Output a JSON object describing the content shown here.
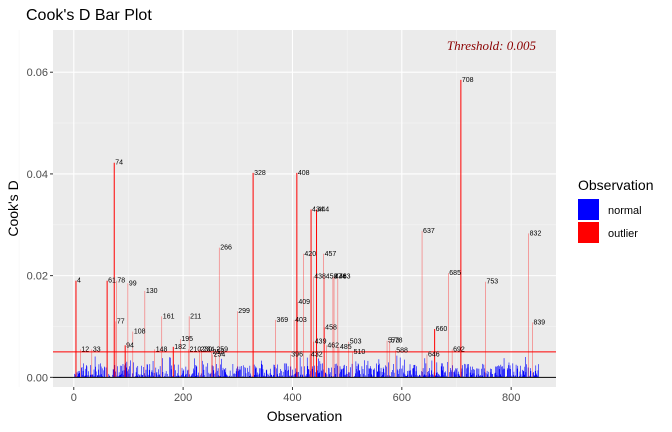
{
  "chart_data": {
    "type": "bar",
    "title": "Cook's D Bar Plot",
    "xlabel": "Observation",
    "ylabel": "Cook's D",
    "xlim": [
      -38,
      882
    ],
    "ylim": [
      -0.0019,
      0.0683
    ],
    "x_ticks": [
      0,
      200,
      400,
      600,
      800
    ],
    "x_tick_labels": [
      "0",
      "200",
      "400",
      "600",
      "800"
    ],
    "y_ticks": [
      0,
      0.02,
      0.04,
      0.06
    ],
    "y_tick_labels": [
      "0.00",
      "0.02",
      "0.04",
      "0.06"
    ],
    "threshold": 0.005,
    "threshold_label": "Threshold: 0.005",
    "grid": true,
    "legend": {
      "title": "Observation",
      "position": "right",
      "items": [
        {
          "name": "normal",
          "color": "#0000ff"
        },
        {
          "name": "outlier",
          "color": "#ff0000"
        }
      ]
    },
    "outliers": [
      {
        "x": 4,
        "y": 0.019,
        "label": "4"
      },
      {
        "x": 12,
        "y": 0.0055,
        "label": "12"
      },
      {
        "x": 33,
        "y": 0.0055,
        "label": "33"
      },
      {
        "x": 61,
        "y": 0.019,
        "label": "61"
      },
      {
        "x": 74,
        "y": 0.0422,
        "label": "74"
      },
      {
        "x": 77,
        "y": 0.011,
        "label": "77"
      },
      {
        "x": 78,
        "y": 0.019,
        "label": "78"
      },
      {
        "x": 94,
        "y": 0.0063,
        "label": "94"
      },
      {
        "x": 99,
        "y": 0.0185,
        "label": "99"
      },
      {
        "x": 108,
        "y": 0.009,
        "label": "108"
      },
      {
        "x": 130,
        "y": 0.017,
        "label": "130"
      },
      {
        "x": 148,
        "y": 0.0055,
        "label": "148"
      },
      {
        "x": 161,
        "y": 0.012,
        "label": "161"
      },
      {
        "x": 182,
        "y": 0.006,
        "label": "182"
      },
      {
        "x": 195,
        "y": 0.0075,
        "label": "195"
      },
      {
        "x": 210,
        "y": 0.0055,
        "label": "210"
      },
      {
        "x": 211,
        "y": 0.012,
        "label": "211"
      },
      {
        "x": 230,
        "y": 0.0055,
        "label": "230"
      },
      {
        "x": 234,
        "y": 0.0055,
        "label": "234"
      },
      {
        "x": 252,
        "y": 0.005,
        "label": "252"
      },
      {
        "x": 254,
        "y": 0.0045,
        "label": "254"
      },
      {
        "x": 259,
        "y": 0.0055,
        "label": "259"
      },
      {
        "x": 266,
        "y": 0.0255,
        "label": "266"
      },
      {
        "x": 299,
        "y": 0.013,
        "label": "299"
      },
      {
        "x": 328,
        "y": 0.0402,
        "label": "328"
      },
      {
        "x": 369,
        "y": 0.0113,
        "label": "369"
      },
      {
        "x": 396,
        "y": 0.0045,
        "label": "396"
      },
      {
        "x": 403,
        "y": 0.0113,
        "label": "403"
      },
      {
        "x": 408,
        "y": 0.0402,
        "label": "408"
      },
      {
        "x": 409,
        "y": 0.0148,
        "label": "409"
      },
      {
        "x": 420,
        "y": 0.0243,
        "label": "420"
      },
      {
        "x": 432,
        "y": 0.0045,
        "label": "432"
      },
      {
        "x": 434,
        "y": 0.033,
        "label": "434"
      },
      {
        "x": 438,
        "y": 0.0198,
        "label": "438"
      },
      {
        "x": 439,
        "y": 0.007,
        "label": "439"
      },
      {
        "x": 444,
        "y": 0.033,
        "label": "444"
      },
      {
        "x": 457,
        "y": 0.0243,
        "label": "457"
      },
      {
        "x": 458,
        "y": 0.0098,
        "label": "458"
      },
      {
        "x": 459,
        "y": 0.0198,
        "label": "459"
      },
      {
        "x": 462,
        "y": 0.0063,
        "label": "462"
      },
      {
        "x": 474,
        "y": 0.0198,
        "label": "474"
      },
      {
        "x": 476,
        "y": 0.0198,
        "label": "476"
      },
      {
        "x": 483,
        "y": 0.0198,
        "label": "483"
      },
      {
        "x": 485,
        "y": 0.006,
        "label": "485"
      },
      {
        "x": 503,
        "y": 0.007,
        "label": "503"
      },
      {
        "x": 510,
        "y": 0.005,
        "label": "510"
      },
      {
        "x": 573,
        "y": 0.0072,
        "label": "573"
      },
      {
        "x": 578,
        "y": 0.0072,
        "label": "578"
      },
      {
        "x": 588,
        "y": 0.0053,
        "label": "588"
      },
      {
        "x": 637,
        "y": 0.0288,
        "label": "637"
      },
      {
        "x": 646,
        "y": 0.0045,
        "label": "646"
      },
      {
        "x": 660,
        "y": 0.0095,
        "label": "660"
      },
      {
        "x": 685,
        "y": 0.0205,
        "label": "685"
      },
      {
        "x": 692,
        "y": 0.0055,
        "label": "692"
      },
      {
        "x": 708,
        "y": 0.0585,
        "label": "708"
      },
      {
        "x": 753,
        "y": 0.0188,
        "label": "753"
      },
      {
        "x": 832,
        "y": 0.0283,
        "label": "832"
      },
      {
        "x": 839,
        "y": 0.0108,
        "label": "839"
      }
    ]
  }
}
